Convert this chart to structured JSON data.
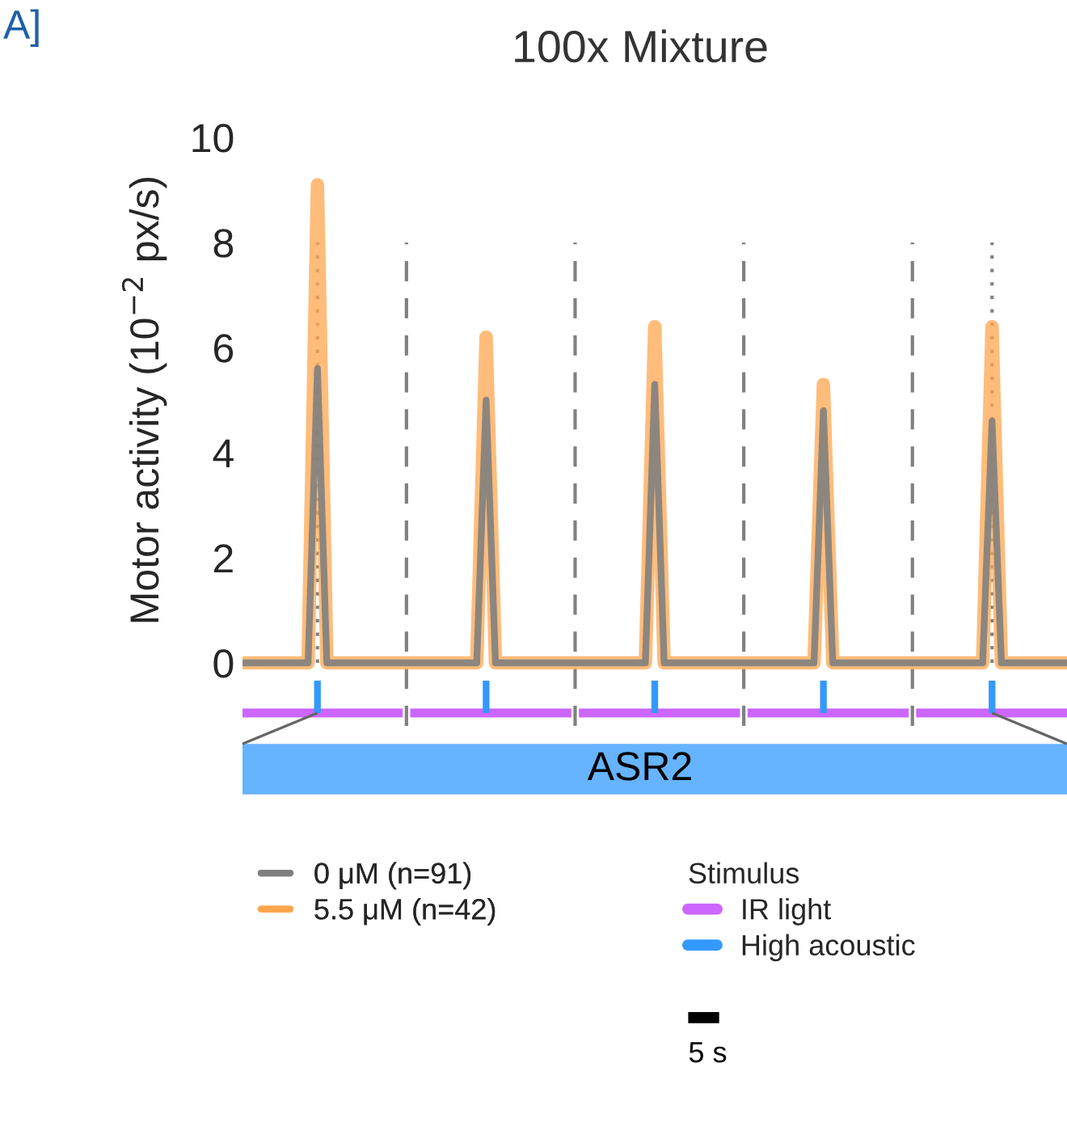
{
  "chart_data": {
    "type": "line",
    "title": "100x Mixture",
    "ylabel": "Motor activity (10$^{−2}$ px/s)",
    "legend_title": "Stimulus",
    "annotations": [
      "A]",
      "ASR2",
      "5 s",
      "IR light",
      "High acoustic"
    ],
    "categories": [
      null,
      null,
      null,
      null,
      null,
      null,
      null,
      null,
      null,
      null,
      null,
      null,
      null,
      null,
      null,
      null,
      null,
      null,
      null,
      null,
      null,
      null,
      null,
      null,
      null,
      null,
      null,
      null,
      null,
      null,
      null,
      null,
      null,
      null,
      null,
      null,
      null,
      null,
      null,
      null,
      null,
      null,
      null,
      null,
      null,
      null,
      null,
      null,
      null,
      null,
      null,
      null,
      null,
      null,
      null,
      null,
      null,
      null,
      null,
      null,
      null,
      null,
      null,
      null,
      null,
      null,
      null,
      null,
      null,
      null,
      null,
      null,
      null,
      null,
      null,
      null,
      null,
      null,
      null,
      null,
      null,
      null,
      null,
      null,
      null,
      null,
      null,
      null,
      null
    ],
    "ylim": [
      0,
      10
    ],
    "yticks": [
      0,
      2,
      4,
      6,
      8,
      10
    ],
    "tick_labels": "y",
    "grid": false,
    "legend": "bottom",
    "series": [
      {
        "name": "0 μM (n=91)",
        "color": "#7f7f7f",
        "values": [
          0,
          0,
          0,
          0,
          0,
          0,
          0,
          0,
          5.6,
          0,
          0,
          0,
          0,
          0,
          0,
          0,
          0,
          0,
          0,
          0,
          0,
          0,
          0,
          0,
          0,
          0,
          5.0,
          0,
          0,
          0,
          0,
          0,
          0,
          0,
          0,
          0,
          0,
          0,
          0,
          0,
          0,
          0,
          0,
          0,
          5.3,
          0,
          0,
          0,
          0,
          0,
          0,
          0,
          0,
          0,
          0,
          0,
          0,
          0,
          0,
          0,
          0,
          0,
          4.8,
          0,
          0,
          0,
          0,
          0,
          0,
          0,
          0,
          0,
          0,
          0,
          0,
          0,
          0,
          0,
          0,
          0,
          4.6,
          0,
          0,
          0,
          0,
          0,
          0,
          0,
          0
        ]
      },
      {
        "name": "5.5 μM (n=42)",
        "color": "#ffa64d",
        "values": [
          0,
          0,
          0,
          0,
          0,
          0,
          0,
          0,
          9.1,
          0,
          0,
          0,
          0,
          0,
          0,
          0,
          0,
          0,
          0,
          0,
          0,
          0,
          0,
          0,
          0,
          0,
          6.2,
          0,
          0,
          0,
          0,
          0,
          0,
          0,
          0,
          0,
          0,
          0,
          0,
          0,
          0,
          0,
          0,
          0,
          6.4,
          0,
          0,
          0,
          0,
          0,
          0,
          0,
          0,
          0,
          0,
          0,
          0,
          0,
          0,
          0,
          0,
          0,
          5.3,
          0,
          0,
          0,
          0,
          0,
          0,
          0,
          0,
          0,
          0,
          0,
          0,
          0,
          0,
          0,
          0,
          0,
          6.4,
          0,
          0,
          0,
          0,
          0,
          0,
          0,
          0
        ]
      }
    ]
  }
}
